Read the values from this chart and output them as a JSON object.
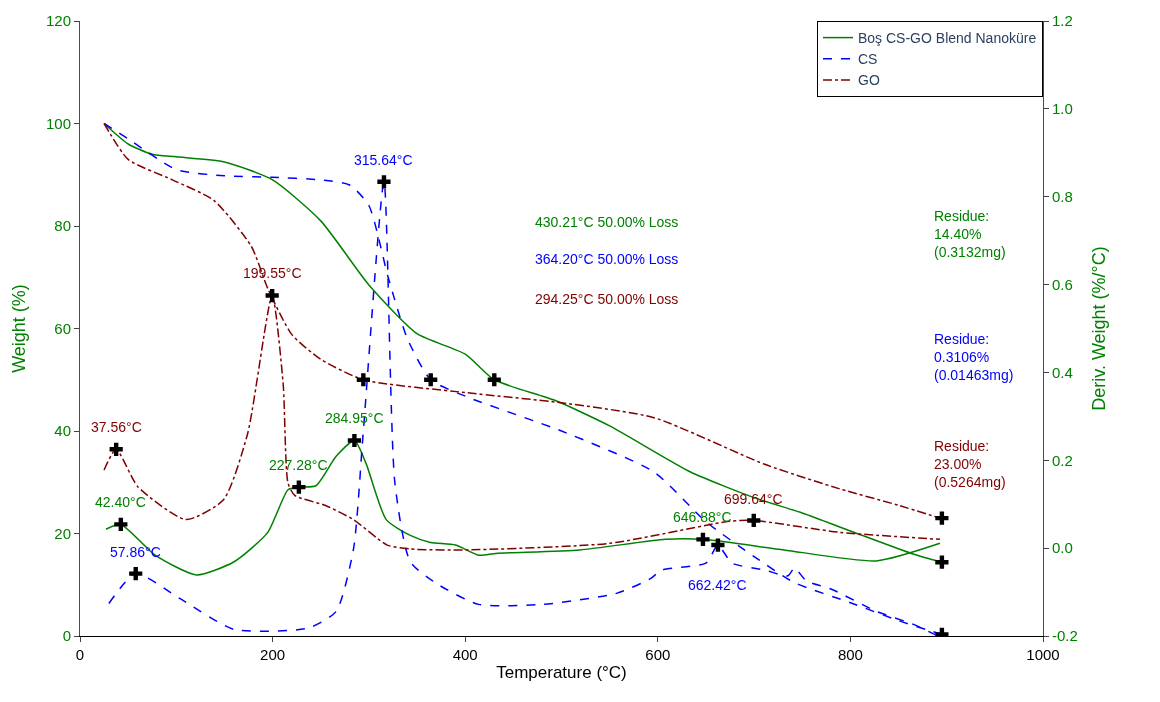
{
  "chart_data": {
    "type": "line",
    "xlabel": "Temperature (°C)",
    "ylabel": "Weight (%)",
    "y2label": "Deriv. Weight (%/°C)",
    "xlim": [
      0,
      1000
    ],
    "xticks": [
      0,
      200,
      400,
      600,
      800,
      1000
    ],
    "ylim": [
      0,
      120
    ],
    "yticks": [
      0,
      20,
      40,
      60,
      80,
      100,
      120
    ],
    "y2lim": [
      -0.2,
      1.2
    ],
    "y2ticks": [
      {
        "value": -0.2,
        "label": "-0.2"
      },
      {
        "value": 0,
        "label": "0.0"
      },
      {
        "value": 0.2,
        "label": "0.2"
      },
      {
        "value": 0.4,
        "label": "0.4"
      },
      {
        "value": 0.6,
        "label": "0.6"
      },
      {
        "value": 0.8,
        "label": "0.8"
      },
      {
        "value": 1.0,
        "label": "1.0"
      },
      {
        "value": 1.2,
        "label": "1.2"
      }
    ],
    "legend": "top right",
    "marker": "none",
    "series": [
      {
        "name": "Boş CS-GO Blend Nanoküre",
        "color": "#008000",
        "line_style": "solid",
        "x": [
          25,
          50,
          75,
          100,
          150,
          200,
          250,
          300,
          350,
          400,
          430.21,
          493,
          550,
          634,
          700,
          750,
          800,
          865,
          895
        ],
        "values": [
          100,
          96,
          94,
          93.5,
          92.5,
          89,
          81,
          68.5,
          59,
          55,
          50,
          46,
          41,
          32,
          27,
          24,
          20.5,
          16,
          14.4
        ]
      },
      {
        "name": "CS",
        "color": "#0000ff",
        "line_style": "dashed",
        "x": [
          25,
          50,
          100,
          150,
          200,
          250,
          280,
          300,
          320,
          340,
          364.2,
          404,
          500,
          596,
          650,
          700,
          742,
          800,
          850,
          895
        ],
        "values": [
          100,
          97,
          91,
          89.8,
          89.5,
          89,
          88,
          84,
          70,
          58,
          50,
          46.5,
          40,
          32,
          22.3,
          15.5,
          10.4,
          6.5,
          3,
          0.3
        ]
      },
      {
        "name": "GO",
        "color": "#800000",
        "line_style": "dashdot",
        "x": [
          25,
          50,
          96,
          139,
          178,
          195,
          220,
          250,
          294.25,
          400,
          500,
          596,
          711,
          789,
          850,
          893
        ],
        "values": [
          100,
          93,
          89,
          85,
          76,
          67.8,
          58.8,
          54,
          50,
          47.5,
          45.5,
          42.6,
          33.5,
          28.7,
          25.5,
          23
        ]
      },
      {
        "color": "#008000",
        "line_style": "solid",
        "axis": "y2",
        "x": [
          27,
          42.4,
          78,
          121,
          160,
          195,
          216,
          227.28,
          245,
          266,
          284.95,
          297,
          318,
          343,
          364,
          390,
          414,
          432,
          519,
          608,
          646.88,
          731,
          827,
          893
        ],
        "values": [
          0.043,
          0.054,
          -0.016,
          -0.061,
          -0.031,
          0.036,
          0.133,
          0.139,
          0.142,
          0.209,
          0.245,
          0.193,
          0.065,
          0.029,
          0.013,
          0.007,
          -0.016,
          -0.012,
          -0.004,
          0.02,
          0.02,
          -0.004,
          -0.029,
          0.011
        ]
      },
      {
        "color": "#0000ff",
        "line_style": "dashed",
        "axis": "y2",
        "x": [
          30,
          57.86,
          104,
          160,
          237,
          266,
          284,
          294,
          315.64,
          327,
          343,
          372,
          414,
          481,
          557,
          592,
          604,
          650,
          662.42,
          677,
          711,
          735,
          742,
          754,
          781,
          827,
          865,
          889
        ],
        "values": [
          -0.126,
          -0.058,
          -0.115,
          -0.185,
          -0.182,
          -0.144,
          -0.002,
          0.26,
          0.834,
          0.148,
          -0.031,
          -0.083,
          -0.128,
          -0.128,
          -0.103,
          -0.07,
          -0.05,
          -0.034,
          0.007,
          -0.034,
          -0.05,
          -0.063,
          -0.045,
          -0.074,
          -0.094,
          -0.144,
          -0.173,
          -0.198
        ]
      },
      {
        "color": "#800000",
        "line_style": "dashdot",
        "axis": "y2",
        "x": [
          25,
          37.56,
          60,
          110,
          149,
          174,
          199.55,
          211,
          216,
          223,
          255,
          284,
          319,
          343,
          403,
          550,
          674,
          699.64,
          789,
          893
        ],
        "values": [
          0.178,
          0.225,
          0.14,
          0.065,
          0.11,
          0.26,
          0.575,
          0.373,
          0.148,
          0.12,
          0.097,
          0.065,
          0.007,
          -0.002,
          -0.004,
          0.011,
          0.061,
          0.063,
          0.036,
          0.02
        ]
      },
      {
        "type": "scatter",
        "marker": "cross",
        "color": "#000000",
        "x": [
          294.25,
          364.2,
          430.21,
          895,
          895,
          895
        ],
        "values": [
          50,
          50,
          50,
          23,
          14.4,
          0.3
        ]
      },
      {
        "type": "scatter",
        "marker": "cross",
        "color": "#000000",
        "axis": "y2",
        "x": [
          37.56,
          42.4,
          57.86,
          199.55,
          227.28,
          284.95,
          315.64,
          646.88,
          662.42,
          699.64
        ],
        "values": [
          0.225,
          0.054,
          -0.058,
          0.575,
          0.139,
          0.245,
          0.834,
          0.02,
          0.007,
          0.063
        ]
      }
    ],
    "annotations": [
      {
        "text": "37.56°C",
        "x": 37.56,
        "y": 36.4
      },
      {
        "text": "42.40°C",
        "x": 42.4,
        "y": 21.8
      },
      {
        "text": "57.86°C",
        "x": 57.86,
        "y": 12.1
      },
      {
        "text": "199.55°C",
        "x": 199.55,
        "y": 66.5
      },
      {
        "text": "227.28°C",
        "x": 227.28,
        "y": 29.1
      },
      {
        "text": "284.95°C",
        "x": 284.95,
        "y": 38.2
      },
      {
        "text": "315.64°C",
        "x": 315.64,
        "y": 88.6
      },
      {
        "text": "646.88°C",
        "x": 646.88,
        "y": 18.9
      },
      {
        "text": "662.42°C",
        "x": 662.42,
        "y": 17.7
      },
      {
        "text": "699.64°C",
        "x": 699.64,
        "y": 22.4
      },
      "430.21°C 50.00% Loss",
      "364.20°C 50.00% Loss",
      "294.25°C 50.00% Loss",
      "Residue:\n14.40%\n(0.3132mg)",
      "Residue:\n0.3106%\n(0.01463mg)",
      "Residue:\n23.00%\n(0.5264mg)"
    ]
  }
}
